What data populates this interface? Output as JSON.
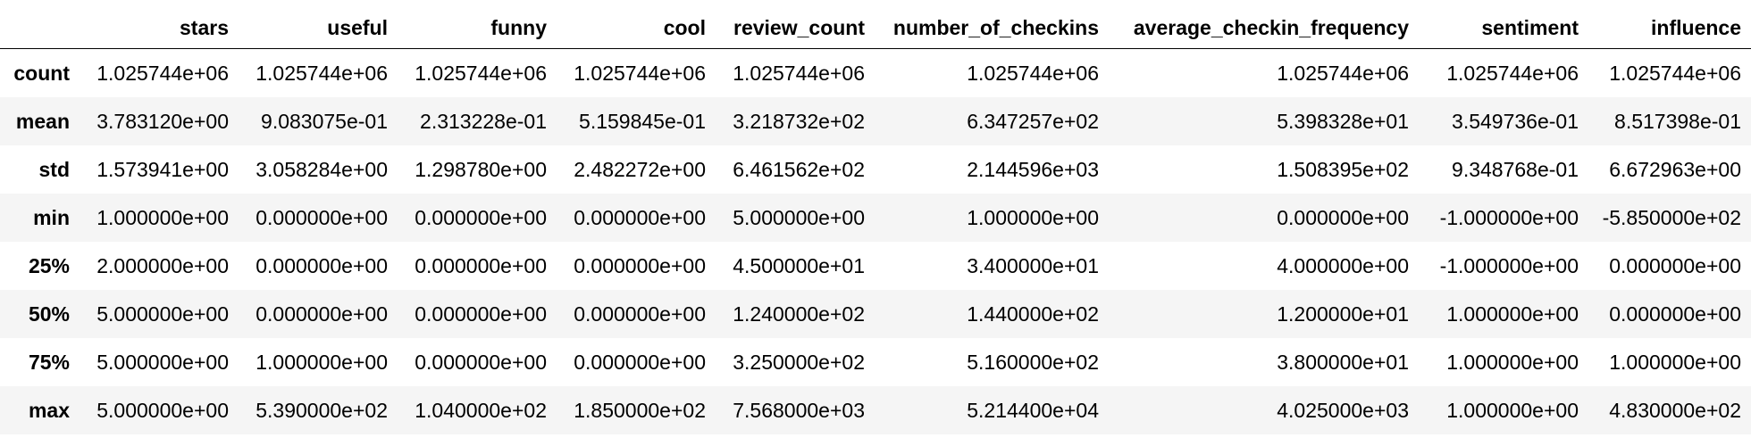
{
  "table": {
    "index_header": "",
    "columns": [
      "stars",
      "useful",
      "funny",
      "cool",
      "review_count",
      "number_of_checkins",
      "average_checkin_frequency",
      "sentiment",
      "influence"
    ],
    "rows": [
      {
        "label": "count",
        "values": [
          "1.025744e+06",
          "1.025744e+06",
          "1.025744e+06",
          "1.025744e+06",
          "1.025744e+06",
          "1.025744e+06",
          "1.025744e+06",
          "1.025744e+06",
          "1.025744e+06"
        ]
      },
      {
        "label": "mean",
        "values": [
          "3.783120e+00",
          "9.083075e-01",
          "2.313228e-01",
          "5.159845e-01",
          "3.218732e+02",
          "6.347257e+02",
          "5.398328e+01",
          "3.549736e-01",
          "8.517398e-01"
        ]
      },
      {
        "label": "std",
        "values": [
          "1.573941e+00",
          "3.058284e+00",
          "1.298780e+00",
          "2.482272e+00",
          "6.461562e+02",
          "2.144596e+03",
          "1.508395e+02",
          "9.348768e-01",
          "6.672963e+00"
        ]
      },
      {
        "label": "min",
        "values": [
          "1.000000e+00",
          "0.000000e+00",
          "0.000000e+00",
          "0.000000e+00",
          "5.000000e+00",
          "1.000000e+00",
          "0.000000e+00",
          "-1.000000e+00",
          "-5.850000e+02"
        ]
      },
      {
        "label": "25%",
        "values": [
          "2.000000e+00",
          "0.000000e+00",
          "0.000000e+00",
          "0.000000e+00",
          "4.500000e+01",
          "3.400000e+01",
          "4.000000e+00",
          "-1.000000e+00",
          "0.000000e+00"
        ]
      },
      {
        "label": "50%",
        "values": [
          "5.000000e+00",
          "0.000000e+00",
          "0.000000e+00",
          "0.000000e+00",
          "1.240000e+02",
          "1.440000e+02",
          "1.200000e+01",
          "1.000000e+00",
          "0.000000e+00"
        ]
      },
      {
        "label": "75%",
        "values": [
          "5.000000e+00",
          "1.000000e+00",
          "0.000000e+00",
          "0.000000e+00",
          "3.250000e+02",
          "5.160000e+02",
          "3.800000e+01",
          "1.000000e+00",
          "1.000000e+00"
        ]
      },
      {
        "label": "max",
        "values": [
          "5.000000e+00",
          "5.390000e+02",
          "1.040000e+02",
          "1.850000e+02",
          "7.568000e+03",
          "5.214400e+04",
          "4.025000e+03",
          "1.000000e+00",
          "4.830000e+02"
        ]
      }
    ]
  }
}
